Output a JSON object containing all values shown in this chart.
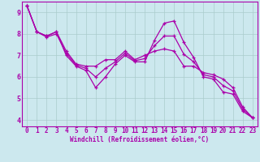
{
  "xlabel": "Windchill (Refroidissement éolien,°C)",
  "background_color": "#cce8ee",
  "line_color": "#aa00aa",
  "grid_color": "#aacccc",
  "xlim": [
    -0.5,
    23.5
  ],
  "ylim": [
    3.7,
    9.5
  ],
  "xticks": [
    0,
    1,
    2,
    3,
    4,
    5,
    6,
    7,
    8,
    9,
    10,
    11,
    12,
    13,
    14,
    15,
    16,
    17,
    18,
    19,
    20,
    21,
    22,
    23
  ],
  "yticks": [
    4,
    5,
    6,
    7,
    8,
    9
  ],
  "series": [
    [
      9.3,
      8.1,
      7.9,
      8.1,
      7.0,
      6.5,
      6.3,
      5.5,
      6.0,
      6.6,
      7.0,
      6.7,
      6.7,
      7.7,
      8.5,
      8.6,
      7.6,
      6.9,
      6.0,
      5.9,
      5.3,
      5.2,
      4.4,
      4.1
    ],
    [
      9.3,
      8.1,
      7.9,
      8.1,
      7.2,
      6.6,
      6.5,
      6.5,
      6.8,
      6.8,
      7.2,
      6.8,
      7.0,
      7.2,
      7.3,
      7.2,
      6.5,
      6.5,
      6.2,
      6.1,
      5.9,
      5.5,
      4.6,
      4.1
    ],
    [
      9.3,
      8.1,
      7.85,
      8.0,
      7.1,
      6.55,
      6.4,
      6.0,
      6.4,
      6.7,
      7.1,
      6.75,
      6.85,
      7.45,
      7.9,
      7.9,
      7.05,
      6.7,
      6.1,
      6.0,
      5.6,
      5.35,
      4.5,
      4.1
    ]
  ],
  "tick_fontsize": 5.5,
  "xlabel_fontsize": 5.5,
  "marker_size": 3,
  "line_width": 0.9
}
